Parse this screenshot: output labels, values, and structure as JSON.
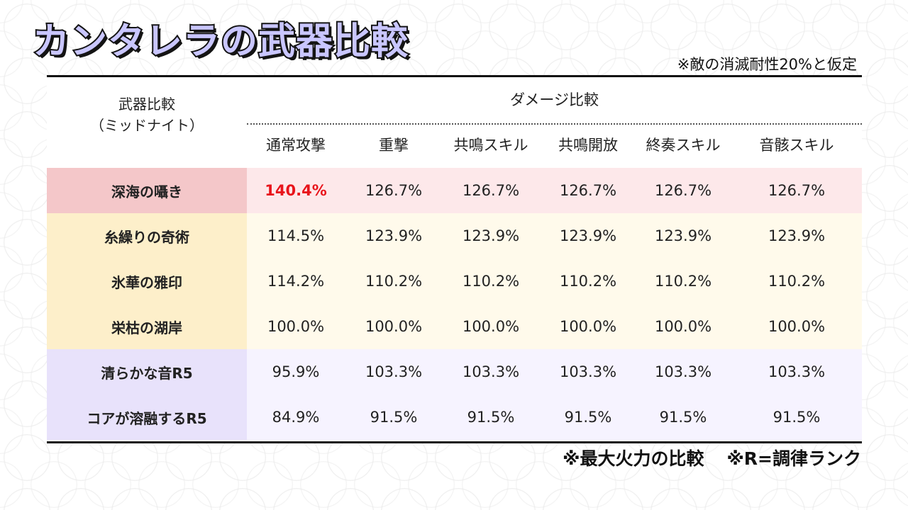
{
  "title": "カンタレラの武器比較",
  "note_top": "※敵の消滅耐性20%と仮定",
  "header": {
    "left_line1": "武器比較",
    "left_line2": "（ミッドナイト）",
    "group": "ダメージ比較",
    "columns": [
      "通常攻撃",
      "重撃",
      "共鳴スキル",
      "共鳴開放",
      "終奏スキル",
      "音骸スキル"
    ]
  },
  "rows": [
    {
      "name": "深海の囁き",
      "values": [
        "140.4%",
        "126.7%",
        "126.7%",
        "126.7%",
        "126.7%",
        "126.7%"
      ],
      "highlight_first": true
    },
    {
      "name": "糸繰りの奇術",
      "values": [
        "114.5%",
        "123.9%",
        "123.9%",
        "123.9%",
        "123.9%",
        "123.9%"
      ]
    },
    {
      "name": "氷華の雅印",
      "values": [
        "114.2%",
        "110.2%",
        "110.2%",
        "110.2%",
        "110.2%",
        "110.2%"
      ]
    },
    {
      "name": "栄枯の湖岸",
      "values": [
        "100.0%",
        "100.0%",
        "100.0%",
        "100.0%",
        "100.0%",
        "100.0%"
      ]
    },
    {
      "name": "清らかな音R5",
      "values": [
        "95.9%",
        "103.3%",
        "103.3%",
        "103.3%",
        "103.3%",
        "103.3%"
      ]
    },
    {
      "name": "コアが溶融するR5",
      "values": [
        "84.9%",
        "91.5%",
        "91.5%",
        "91.5%",
        "91.5%",
        "91.5%"
      ]
    }
  ],
  "colors": {
    "row_bg": [
      "#fde8ea",
      "#fffaeb",
      "#fffaeb",
      "#fffaeb",
      "#f6f3ff",
      "#f6f3ff"
    ],
    "name_bg": [
      "#f4c7c9",
      "#fdefca",
      "#fdefca",
      "#fdefca",
      "#e8e2fb",
      "#e8e2fb"
    ],
    "highlight": "#e8141b"
  },
  "note_bottom": [
    "※最大火力の比較",
    "※R=調律ランク"
  ]
}
